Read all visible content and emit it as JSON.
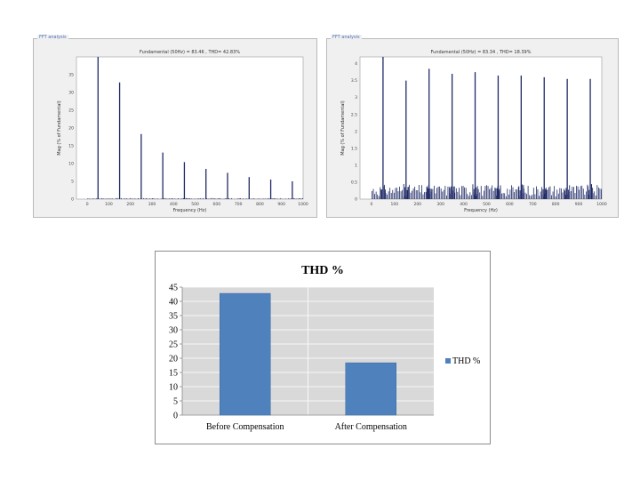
{
  "colors": {
    "spectrum_bar": "#1f2a66",
    "thd_bar": "#4f81bd",
    "plot_area": "#d9d9d9",
    "panel_bg": "#f0f0f0"
  },
  "chart_data": [
    {
      "type": "bar",
      "panel_label": "FFT analysis",
      "title": "Fundamental (50Hz) = 83.46 , THD= 42.83%",
      "xlabel": "Frequency (Hz)",
      "ylabel": "Mag (% of Fundamental)",
      "xlim": [
        -50,
        1000
      ],
      "ylim": [
        0,
        40
      ],
      "xticks": [
        "0",
        "100",
        "200",
        "300",
        "400",
        "500",
        "600",
        "700",
        "800",
        "900",
        "1000"
      ],
      "yticks": [
        "0",
        "5",
        "10",
        "15",
        "20",
        "25",
        "30",
        "35"
      ],
      "harmonics": [
        {
          "f": 50,
          "v": 40
        },
        {
          "f": 150,
          "v": 32.8
        },
        {
          "f": 250,
          "v": 18.3
        },
        {
          "f": 350,
          "v": 13.1
        },
        {
          "f": 450,
          "v": 10.4
        },
        {
          "f": 550,
          "v": 8.5
        },
        {
          "f": 650,
          "v": 7.4
        },
        {
          "f": 750,
          "v": 6.2
        },
        {
          "f": 850,
          "v": 5.5
        },
        {
          "f": 950,
          "v": 5.0
        }
      ]
    },
    {
      "type": "bar",
      "panel_label": "FFT analysis",
      "title": "Fundamental (50Hz) = 83.34 , THD= 18.39%",
      "xlabel": "Frequency (Hz)",
      "ylabel": "Mag (% of Fundamental)",
      "xlim": [
        -50,
        1000
      ],
      "ylim": [
        0,
        4.2
      ],
      "xticks": [
        "0",
        "100",
        "200",
        "300",
        "400",
        "500",
        "600",
        "700",
        "800",
        "900",
        "1000"
      ],
      "yticks": [
        "0",
        "0.5",
        "1",
        "1.5",
        "2",
        "2.5",
        "3",
        "3.5",
        "4"
      ],
      "harmonics": [
        {
          "f": 50,
          "v": 4.2
        },
        {
          "f": 150,
          "v": 3.5
        },
        {
          "f": 250,
          "v": 3.85
        },
        {
          "f": 350,
          "v": 3.7
        },
        {
          "f": 450,
          "v": 3.75
        },
        {
          "f": 550,
          "v": 3.65
        },
        {
          "f": 650,
          "v": 3.65
        },
        {
          "f": 750,
          "v": 3.6
        },
        {
          "f": 850,
          "v": 3.55
        },
        {
          "f": 950,
          "v": 3.55
        }
      ]
    },
    {
      "type": "bar",
      "title": "THD %",
      "categories": [
        "Before Compensation",
        "After Compensation"
      ],
      "series": [
        {
          "name": "THD %",
          "values": [
            42.8,
            18.4
          ]
        }
      ],
      "ylim": [
        0,
        45
      ],
      "yticks": [
        "0",
        "5",
        "10",
        "15",
        "20",
        "25",
        "30",
        "35",
        "40",
        "45"
      ],
      "legend": "right"
    }
  ]
}
